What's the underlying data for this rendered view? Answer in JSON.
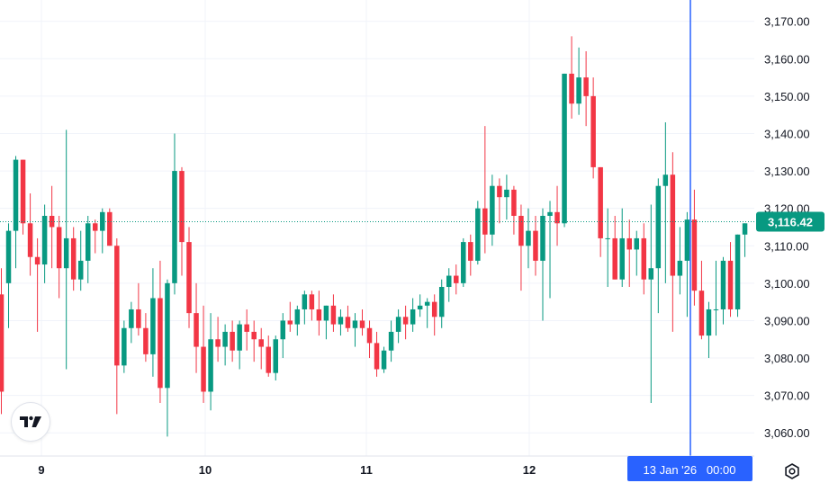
{
  "chart_data": {
    "type": "candlestick",
    "y_axis_ticks": [
      "3,060.00",
      "3,070.00",
      "3,080.00",
      "3,090.00",
      "3,100.00",
      "3,110.00",
      "3,120.00",
      "3,130.00",
      "3,140.00",
      "3,150.00",
      "3,160.00",
      "3,170.00"
    ],
    "ylim": [
      3053.8,
      3175.7
    ],
    "x_axis_labels": [
      "9",
      "10",
      "11",
      "12"
    ],
    "last_price": 3116.42,
    "last_price_label": "3,116.42",
    "crosshair_label": "13 Jan '26   00:00",
    "grid": true,
    "colors": {
      "up": "#089981",
      "down": "#f23645",
      "crosshair": "#2962ff",
      "price_tag": "#089981"
    },
    "candles": [
      [
        3097,
        3104,
        3065,
        3071
      ],
      [
        3100,
        3116,
        3088,
        3114
      ],
      [
        3114,
        3134,
        3104,
        3133
      ],
      [
        3133,
        3133,
        3113,
        3116
      ],
      [
        3116,
        3124,
        3102,
        3107
      ],
      [
        3107,
        3112,
        3087,
        3105
      ],
      [
        3105,
        3121,
        3100,
        3118
      ],
      [
        3118,
        3126,
        3104,
        3115
      ],
      [
        3115,
        3118,
        3096,
        3104
      ],
      [
        3104,
        3141,
        3077,
        3112
      ],
      [
        3112,
        3115,
        3098,
        3101
      ],
      [
        3101,
        3114,
        3098,
        3106
      ],
      [
        3106,
        3118,
        3100,
        3116
      ],
      [
        3116,
        3117,
        3108,
        3114
      ],
      [
        3114,
        3120,
        3108,
        3119
      ],
      [
        3119,
        3120,
        3110,
        3110
      ],
      [
        3110,
        3112,
        3065,
        3078
      ],
      [
        3078,
        3090,
        3076,
        3088
      ],
      [
        3088,
        3095,
        3084,
        3093
      ],
      [
        3093,
        3100,
        3086,
        3088
      ],
      [
        3088,
        3092,
        3079,
        3081
      ],
      [
        3081,
        3104,
        3075,
        3096
      ],
      [
        3096,
        3106,
        3068,
        3072
      ],
      [
        3072,
        3101,
        3059,
        3100
      ],
      [
        3100,
        3140,
        3097,
        3130
      ],
      [
        3130,
        3131,
        3102,
        3111
      ],
      [
        3111,
        3115,
        3088,
        3092
      ],
      [
        3092,
        3100,
        3076,
        3083
      ],
      [
        3083,
        3094,
        3068,
        3071
      ],
      [
        3071,
        3092,
        3066,
        3085
      ],
      [
        3085,
        3091,
        3079,
        3083
      ],
      [
        3083,
        3089,
        3078,
        3087
      ],
      [
        3087,
        3090,
        3079,
        3082
      ],
      [
        3082,
        3090,
        3077,
        3089
      ],
      [
        3089,
        3093,
        3082,
        3087
      ],
      [
        3087,
        3090,
        3079,
        3085
      ],
      [
        3085,
        3088,
        3077,
        3083
      ],
      [
        3083,
        3086,
        3075,
        3076
      ],
      [
        3076,
        3086,
        3074,
        3085
      ],
      [
        3085,
        3092,
        3080,
        3090
      ],
      [
        3090,
        3095,
        3087,
        3089
      ],
      [
        3089,
        3094,
        3086,
        3093
      ],
      [
        3093,
        3098,
        3089,
        3097
      ],
      [
        3097,
        3098,
        3090,
        3093
      ],
      [
        3093,
        3098,
        3086,
        3090
      ],
      [
        3090,
        3094,
        3085,
        3094
      ],
      [
        3094,
        3097,
        3087,
        3089
      ],
      [
        3089,
        3093,
        3086,
        3091
      ],
      [
        3091,
        3094,
        3087,
        3088
      ],
      [
        3088,
        3092,
        3083,
        3090
      ],
      [
        3090,
        3093,
        3086,
        3088
      ],
      [
        3088,
        3090,
        3080,
        3084
      ],
      [
        3084,
        3087,
        3075,
        3077
      ],
      [
        3077,
        3083,
        3076,
        3082
      ],
      [
        3082,
        3090,
        3079,
        3087
      ],
      [
        3087,
        3093,
        3084,
        3091
      ],
      [
        3091,
        3094,
        3085,
        3089
      ],
      [
        3089,
        3096,
        3087,
        3093
      ],
      [
        3093,
        3097,
        3091,
        3094
      ],
      [
        3094,
        3096,
        3088,
        3095
      ],
      [
        3095,
        3097,
        3086,
        3091
      ],
      [
        3091,
        3101,
        3088,
        3099
      ],
      [
        3099,
        3104,
        3095,
        3102
      ],
      [
        3102,
        3105,
        3097,
        3100
      ],
      [
        3100,
        3112,
        3099,
        3111
      ],
      [
        3111,
        3113,
        3102,
        3106
      ],
      [
        3106,
        3122,
        3105,
        3120
      ],
      [
        3120,
        3142,
        3108,
        3113
      ],
      [
        3113,
        3129,
        3110,
        3126
      ],
      [
        3126,
        3128,
        3116,
        3123
      ],
      [
        3123,
        3129,
        3117,
        3125
      ],
      [
        3125,
        3126,
        3113,
        3118
      ],
      [
        3118,
        3121,
        3098,
        3110
      ],
      [
        3110,
        3120,
        3104,
        3114
      ],
      [
        3114,
        3118,
        3102,
        3106
      ],
      [
        3106,
        3120,
        3090,
        3118
      ],
      [
        3118,
        3122,
        3096,
        3119
      ],
      [
        3119,
        3126,
        3110,
        3116
      ],
      [
        3116,
        3156,
        3115,
        3156
      ],
      [
        3156,
        3166,
        3144,
        3148
      ],
      [
        3148,
        3163,
        3145,
        3155
      ],
      [
        3155,
        3162,
        3142,
        3150
      ],
      [
        3150,
        3155,
        3128,
        3131
      ],
      [
        3131,
        3131,
        3107,
        3112
      ],
      [
        3112,
        3120,
        3099,
        3112
      ],
      [
        3112,
        3118,
        3101,
        3101
      ],
      [
        3101,
        3120,
        3099,
        3112
      ],
      [
        3112,
        3117,
        3099,
        3109
      ],
      [
        3109,
        3114,
        3102,
        3112
      ],
      [
        3112,
        3116,
        3097,
        3101
      ],
      [
        3101,
        3121,
        3068,
        3104
      ],
      [
        3104,
        3128,
        3092,
        3126
      ],
      [
        3126,
        3143,
        3100,
        3129
      ],
      [
        3129,
        3135,
        3087,
        3102
      ],
      [
        3102,
        3115,
        3097,
        3106
      ],
      [
        3106,
        3119,
        3091,
        3117
      ],
      [
        3117,
        3125,
        3094,
        3098
      ],
      [
        3098,
        3106,
        3085,
        3086
      ],
      [
        3086,
        3095,
        3080,
        3093
      ],
      [
        3093,
        3106,
        3086,
        3093
      ],
      [
        3093,
        3107,
        3089,
        3106
      ],
      [
        3106,
        3111,
        3091,
        3093
      ],
      [
        3093,
        3113,
        3091,
        3113
      ],
      [
        3113,
        3116,
        3107,
        3116
      ]
    ]
  }
}
